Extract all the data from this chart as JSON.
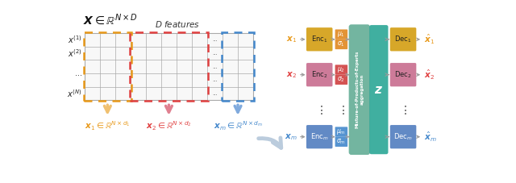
{
  "fig_width": 6.4,
  "fig_height": 2.27,
  "bg_color": "#ffffff",
  "orange_color": "#E8991A",
  "red_color": "#E04040",
  "blue_color": "#4488CC",
  "enc1_color": "#D4A017",
  "enc2_color": "#C97090",
  "encm_color": "#5580C0",
  "dec1_color": "#D4A017",
  "dec2_color": "#C97090",
  "decm_color": "#5580C0",
  "mu1_color": "#E08820",
  "mu2_color": "#D04040",
  "mum_color": "#4488CC",
  "mop_color": "#5BA890",
  "z_color": "#30A898",
  "grid_line_color": "#AAAAAA",
  "dot_color": "#666666",
  "arrow_color": "#999999"
}
